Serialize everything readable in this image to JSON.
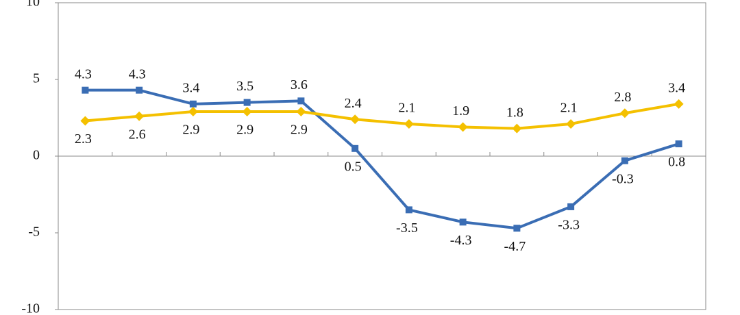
{
  "chart_data": {
    "type": "line",
    "categories": [
      null,
      null,
      null,
      null,
      null,
      null,
      null,
      null,
      null,
      null,
      null,
      null
    ],
    "series": [
      {
        "color": "#3a6db4",
        "marker": "square",
        "values": [
          4.3,
          4.3,
          3.4,
          3.5,
          3.6,
          0.5,
          -3.5,
          -4.3,
          -4.7,
          -3.3,
          -0.3,
          0.8
        ]
      },
      {
        "color": "#f4c000",
        "marker": "diamond",
        "values": [
          2.3,
          2.6,
          2.9,
          2.9,
          2.9,
          2.4,
          2.1,
          1.9,
          1.8,
          2.1,
          2.8,
          3.4
        ]
      }
    ],
    "ylim": [
      -10,
      10
    ],
    "yticks": [
      -10,
      -5,
      0,
      5,
      10
    ],
    "grid": false
  }
}
